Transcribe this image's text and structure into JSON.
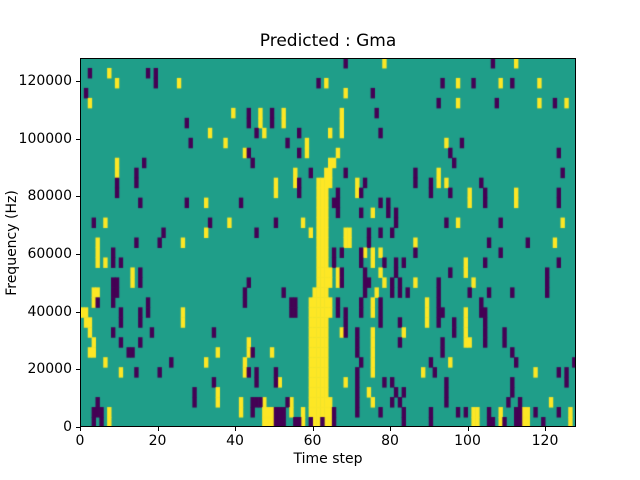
{
  "chart_data": {
    "type": "heatmap",
    "title": "Predicted : Gma",
    "xlabel": "Time step",
    "ylabel": "Frequency (Hz)",
    "xlim": [
      0,
      128
    ],
    "ylim": [
      0,
      128000
    ],
    "x_ticks": [
      "0",
      "20",
      "40",
      "60",
      "80",
      "100",
      "120"
    ],
    "x_tick_values": [
      0,
      20,
      40,
      60,
      80,
      100,
      120
    ],
    "y_ticks": [
      "0",
      "20000",
      "40000",
      "60000",
      "80000",
      "100000",
      "120000"
    ],
    "y_tick_values": [
      0,
      20000,
      40000,
      60000,
      80000,
      100000,
      120000
    ],
    "grid": false,
    "legend": "none",
    "n_cols": 128,
    "n_rows": 37,
    "colormap": "viridis-3-level",
    "value_colors": {
      "mid_background": "#1f9e89",
      "high_yellow": "#fde725",
      "low_purple": "#440154"
    },
    "rows_note": "row 0 = top of plot (~128000 Hz), row 36 = bottom (0 Hz); y=yellow cells (high), p=purple cells (low); all other cells teal (mid)",
    "rows": [
      {
        "y": [
          78,
          112
        ],
        "p": [
          68,
          106
        ]
      },
      {
        "y": [
          7
        ],
        "p": [
          2,
          17,
          19
        ]
      },
      {
        "y": [
          9,
          25,
          63,
          97,
          108,
          118
        ],
        "p": [
          19,
          61,
          93,
          101,
          111
        ]
      },
      {
        "y": [
          68
        ],
        "p": [
          1,
          75
        ]
      },
      {
        "y": [
          2,
          97,
          118,
          125
        ],
        "p": [
          92,
          107,
          122
        ]
      },
      {
        "y": [
          39,
          46,
          52,
          67
        ],
        "p": [
          43,
          49,
          76
        ]
      },
      {
        "y": [
          46,
          52,
          67
        ],
        "p": [
          27,
          43,
          49
        ]
      },
      {
        "y": [
          33,
          47,
          64,
          67
        ],
        "p": [
          45,
          56,
          77
        ]
      },
      {
        "y": [
          37,
          58,
          94
        ],
        "p": [
          28,
          53,
          98
        ]
      },
      {
        "y": [
          42,
          58,
          66
        ],
        "p": [
          43,
          56,
          95,
          123
        ]
      },
      {
        "y": [
          9,
          64,
          65
        ],
        "p": [
          16,
          44,
          96
        ]
      },
      {
        "y": [
          9,
          55,
          63,
          64,
          92
        ],
        "p": [
          14,
          59,
          68,
          86,
          124
        ]
      },
      {
        "y": [
          50,
          55,
          61,
          62,
          63,
          64,
          71,
          92,
          94
        ],
        "p": [
          9,
          14,
          56,
          73,
          86,
          90,
          103
        ]
      },
      {
        "y": [
          50,
          61,
          62,
          63,
          71,
          100,
          112
        ],
        "p": [
          9,
          56,
          66,
          72,
          90,
          95,
          104,
          123
        ]
      },
      {
        "y": [
          32,
          61,
          62,
          63,
          100,
          112
        ],
        "p": [
          15,
          27,
          41,
          65,
          66,
          77,
          79,
          104,
          123
        ]
      },
      {
        "y": [
          61,
          62,
          63,
          75
        ],
        "p": [
          66,
          72,
          79,
          81
        ]
      },
      {
        "y": [
          6,
          38,
          57,
          61,
          62,
          63,
          97,
          124
        ],
        "p": [
          3,
          33,
          50,
          81,
          94,
          108
        ]
      },
      {
        "y": [
          32,
          59,
          61,
          62,
          63,
          68,
          69
        ],
        "p": [
          21,
          45,
          74,
          77,
          80
        ]
      },
      {
        "y": [
          4,
          26,
          61,
          62,
          63,
          68,
          69,
          86,
          122
        ],
        "p": [
          14,
          20,
          74,
          105,
          115
        ]
      },
      {
        "y": [
          4,
          61,
          62,
          63,
          73,
          75,
          77
        ],
        "p": [
          8,
          65,
          67,
          72,
          86,
          108
        ]
      },
      {
        "y": [
          4,
          6,
          61,
          62,
          63,
          75,
          99
        ],
        "p": [
          8,
          10,
          65,
          72,
          78,
          81,
          83,
          104,
          123
        ]
      },
      {
        "y": [
          13,
          61,
          62,
          63,
          64,
          66,
          77,
          99
        ],
        "p": [
          15,
          67,
          73,
          81,
          95,
          120
        ]
      },
      {
        "y": [
          13,
          61,
          62,
          63,
          64,
          66,
          78,
          86,
          101
        ],
        "p": [
          8,
          9,
          15,
          43,
          67,
          73,
          74,
          80,
          82,
          92,
          120
        ]
      },
      {
        "y": [
          3,
          4,
          60,
          61,
          62,
          63,
          76
        ],
        "p": [
          8,
          9,
          42,
          52,
          73,
          80,
          82,
          84,
          92,
          100,
          105,
          111,
          120
        ]
      },
      {
        "y": [
          3,
          59,
          60,
          61,
          62,
          63,
          64,
          75,
          89
        ],
        "p": [
          4,
          8,
          17,
          42,
          54,
          55,
          66,
          72,
          77,
          92,
          103
        ]
      },
      {
        "y": [
          0,
          1,
          26,
          59,
          60,
          61,
          62,
          63,
          64,
          75,
          89,
          99
        ],
        "p": [
          10,
          15,
          17,
          54,
          55,
          66,
          68,
          72,
          77,
          92,
          93,
          103,
          104
        ]
      },
      {
        "y": [
          1,
          2,
          26,
          59,
          60,
          61,
          62,
          63,
          89,
          99
        ],
        "p": [
          10,
          15,
          68,
          77,
          82,
          92,
          96,
          104
        ]
      },
      {
        "y": [
          2,
          59,
          60,
          61,
          62,
          63,
          67,
          75,
          83,
          99
        ],
        "p": [
          8,
          18,
          34,
          68,
          71,
          96,
          104,
          109
        ]
      },
      {
        "y": [
          3,
          43,
          59,
          60,
          61,
          62,
          63,
          75,
          99,
          100
        ],
        "p": [
          10,
          15,
          71,
          82,
          93,
          104,
          109
        ]
      },
      {
        "y": [
          2,
          3,
          35,
          43,
          49,
          59,
          60,
          61,
          62,
          63,
          75
        ],
        "p": [
          12,
          13,
          44,
          71,
          93,
          111
        ]
      },
      {
        "y": [
          6,
          32,
          42,
          59,
          60,
          61,
          62,
          63,
          75,
          95
        ],
        "p": [
          23,
          72,
          90,
          112,
          127
        ]
      },
      {
        "y": [
          10,
          42,
          59,
          60,
          61,
          62,
          63,
          75,
          88,
          117
        ],
        "p": [
          14,
          20,
          43,
          45,
          50,
          71,
          91,
          123,
          125
        ]
      },
      {
        "y": [
          51,
          59,
          60,
          61,
          62,
          63,
          68
        ],
        "p": [
          34,
          45,
          50,
          71,
          78,
          80,
          94,
          111,
          125
        ]
      },
      {
        "y": [
          35,
          59,
          60,
          61,
          62,
          63,
          74
        ],
        "p": [
          29,
          71,
          81,
          83,
          94,
          111
        ]
      },
      {
        "y": [
          35,
          41,
          47,
          54,
          59,
          60,
          61,
          62,
          63,
          64,
          75,
          121
        ],
        "p": [
          4,
          29,
          44,
          45,
          46,
          53,
          71,
          80,
          82,
          94,
          110,
          113
        ]
      },
      {
        "y": [
          7,
          41,
          47,
          48,
          49,
          54,
          57,
          59,
          60,
          61,
          62,
          63,
          64,
          101,
          102,
          108,
          114,
          115,
          126
        ],
        "p": [
          3,
          4,
          5,
          44,
          50,
          51,
          52,
          65,
          71,
          77,
          83,
          90,
          97,
          99,
          105,
          112,
          113,
          117,
          123
        ]
      },
      {
        "y": [
          7,
          47,
          48,
          49,
          57,
          60,
          61,
          63,
          64,
          101,
          102,
          108,
          114,
          115,
          126
        ],
        "p": [
          3,
          5,
          50,
          51,
          52,
          55,
          56,
          59,
          62,
          65,
          83,
          90,
          105,
          106,
          109,
          112,
          113,
          119
        ]
      }
    ]
  }
}
